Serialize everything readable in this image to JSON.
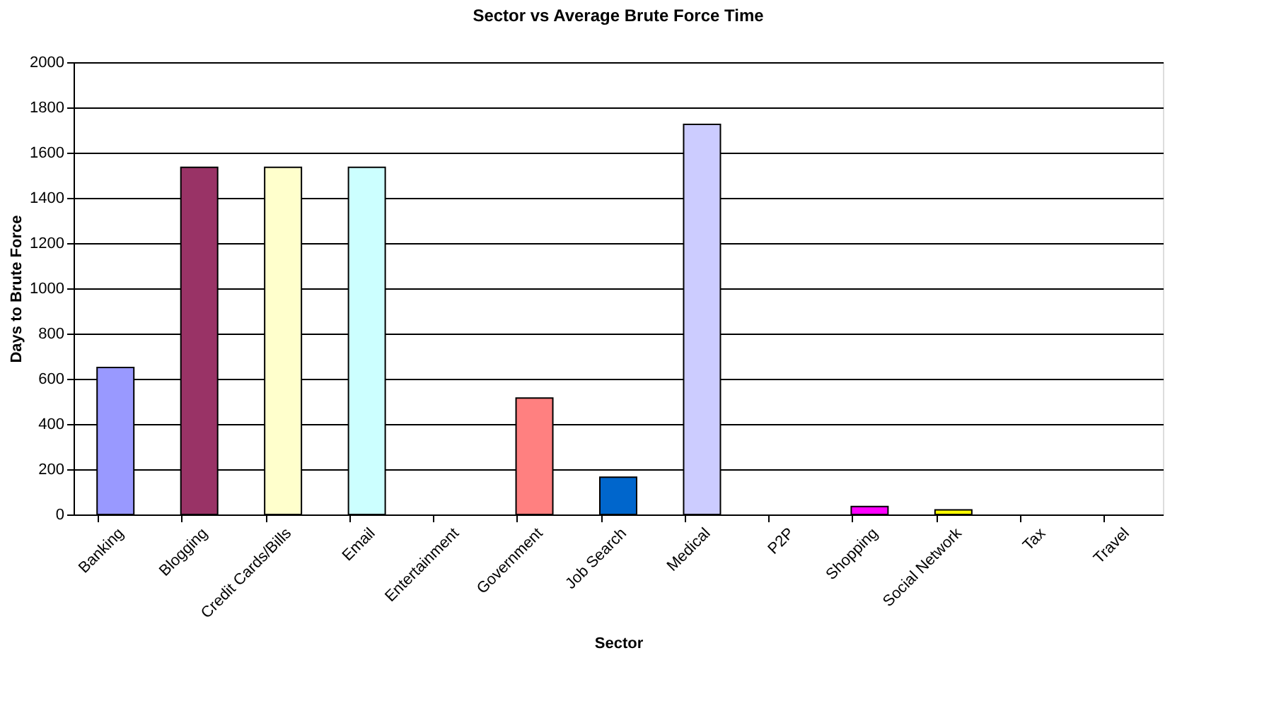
{
  "chart_data": {
    "type": "bar",
    "title": "Sector vs Average Brute Force Time",
    "xlabel": "Sector",
    "ylabel": "Days to Brute Force",
    "categories": [
      "Banking",
      "Blogging",
      "Credit Cards/Bills",
      "Email",
      "Entertainment",
      "Government",
      "Job Search",
      "Medical",
      "P2P",
      "Shopping",
      "Social Network",
      "Tax",
      "Travel"
    ],
    "values": [
      650,
      1535,
      1535,
      1535,
      0,
      515,
      165,
      1725,
      0,
      35,
      20,
      0,
      0
    ],
    "colors": [
      "#9999ff",
      "#993366",
      "#ffffcc",
      "#ccffff",
      null,
      "#ff8080",
      "#0066cc",
      "#ccccff",
      null,
      "#ff00ff",
      "#ffff00",
      null,
      null
    ],
    "ylim": [
      0,
      2000
    ],
    "yticks": [
      0,
      200,
      400,
      600,
      800,
      1000,
      1200,
      1400,
      1600,
      1800,
      2000
    ],
    "grid": "y"
  }
}
